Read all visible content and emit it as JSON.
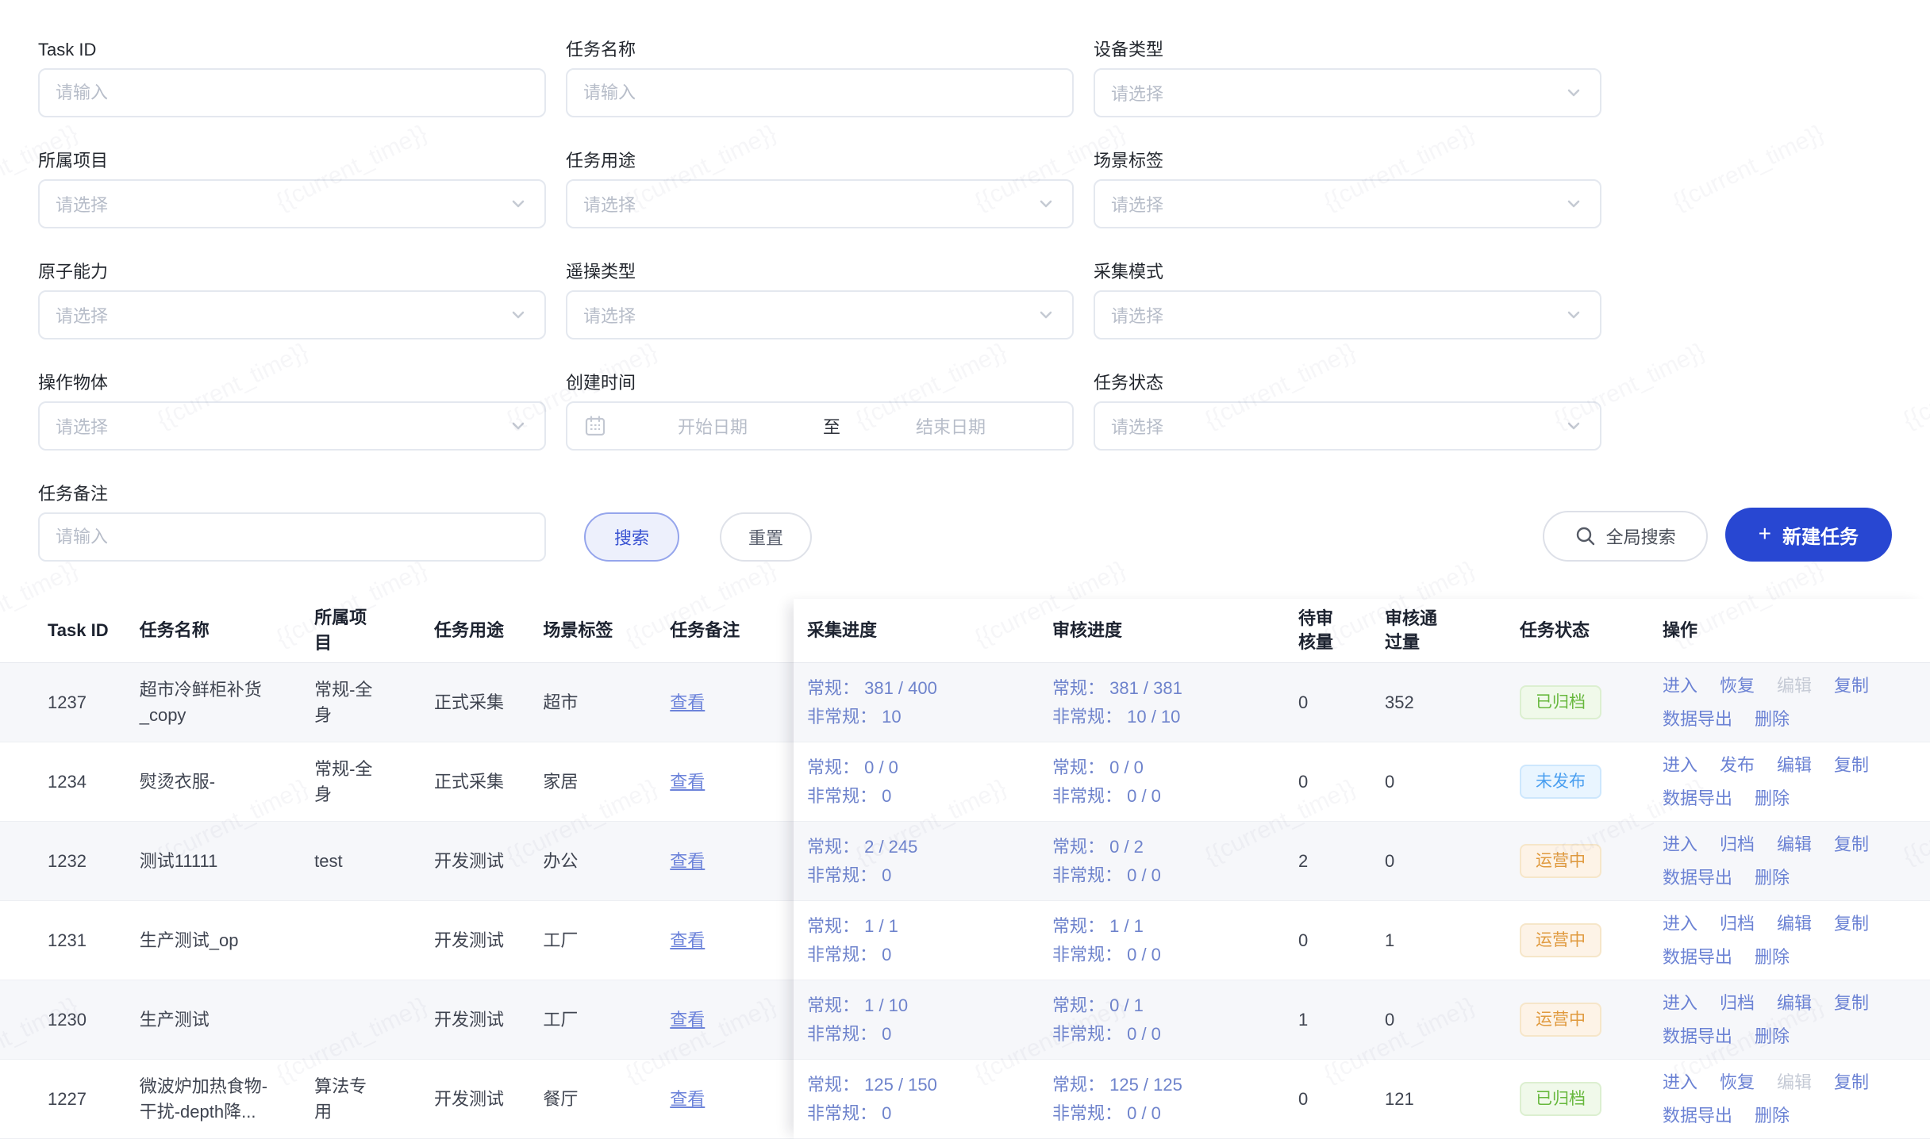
{
  "watermark": "{{current_time}}",
  "filters": {
    "fields": [
      {
        "label": "Task ID",
        "type": "input",
        "placeholder": "请输入"
      },
      {
        "label": "任务名称",
        "type": "input",
        "placeholder": "请输入"
      },
      {
        "label": "设备类型",
        "type": "select",
        "placeholder": "请选择"
      },
      {
        "label": "所属项目",
        "type": "select",
        "placeholder": "请选择"
      },
      {
        "label": "任务用途",
        "type": "select",
        "placeholder": "请选择"
      },
      {
        "label": "场景标签",
        "type": "select",
        "placeholder": "请选择"
      },
      {
        "label": "原子能力",
        "type": "select",
        "placeholder": "请选择"
      },
      {
        "label": "遥操类型",
        "type": "select",
        "placeholder": "请选择"
      },
      {
        "label": "采集模式",
        "type": "select",
        "placeholder": "请选择"
      },
      {
        "label": "操作物体",
        "type": "select",
        "placeholder": "请选择"
      },
      {
        "label": "创建时间",
        "type": "daterange",
        "start_placeholder": "开始日期",
        "separator": "至",
        "end_placeholder": "结束日期"
      },
      {
        "label": "任务状态",
        "type": "select",
        "placeholder": "请选择"
      },
      {
        "label": "任务备注",
        "type": "input",
        "placeholder": "请输入"
      }
    ],
    "search_label": "搜索",
    "reset_label": "重置"
  },
  "toolbar": {
    "global_search_label": "全局搜索",
    "new_task_label": "新建任务",
    "new_task_color": "#2847d2"
  },
  "table": {
    "columns": [
      "Task ID",
      "任务名称",
      "所属项目",
      "任务用途",
      "场景标签",
      "任务备注",
      "采集进度",
      "审核进度",
      "待审核量",
      "审核通过量",
      "任务状态",
      "操作"
    ],
    "view_label": "查看",
    "status_colors": {
      "green": "#67b83d",
      "blue": "#4a9ff0",
      "orange": "#e09a3e"
    },
    "rows": [
      {
        "task_id": "1237",
        "name": "超市冷鲜柜补货_copy",
        "project": "常规-全身",
        "purpose": "正式采集",
        "scene": "超市",
        "collect": [
          "常规： 381 / 400",
          "非常规： 10"
        ],
        "review": [
          "常规： 381 / 381",
          "非常规： 10 / 10"
        ],
        "pending": "0",
        "passed": "352",
        "status": {
          "label": "已归档",
          "type": "green"
        },
        "actions": [
          {
            "label": "进入"
          },
          {
            "label": "恢复"
          },
          {
            "label": "编辑",
            "disabled": true
          },
          {
            "label": "复制"
          },
          {
            "label": "数据导出"
          },
          {
            "label": "删除"
          }
        ]
      },
      {
        "task_id": "1234",
        "name": "熨烫衣服-",
        "project": "常规-全身",
        "purpose": "正式采集",
        "scene": "家居",
        "collect": [
          "常规： 0 / 0",
          "非常规： 0"
        ],
        "review": [
          "常规： 0 / 0",
          "非常规： 0 / 0"
        ],
        "pending": "0",
        "passed": "0",
        "status": {
          "label": "未发布",
          "type": "blue"
        },
        "actions": [
          {
            "label": "进入"
          },
          {
            "label": "发布"
          },
          {
            "label": "编辑"
          },
          {
            "label": "复制"
          },
          {
            "label": "数据导出"
          },
          {
            "label": "删除"
          }
        ]
      },
      {
        "task_id": "1232",
        "name": "测试11111",
        "project": "test",
        "purpose": "开发测试",
        "scene": "办公",
        "collect": [
          "常规： 2 / 245",
          "非常规： 0"
        ],
        "review": [
          "常规： 0 / 2",
          "非常规： 0 / 0"
        ],
        "pending": "2",
        "passed": "0",
        "status": {
          "label": "运营中",
          "type": "orange"
        },
        "actions": [
          {
            "label": "进入"
          },
          {
            "label": "归档"
          },
          {
            "label": "编辑"
          },
          {
            "label": "复制"
          },
          {
            "label": "数据导出"
          },
          {
            "label": "删除"
          }
        ]
      },
      {
        "task_id": "1231",
        "name": "生产测试_op",
        "project": "",
        "purpose": "开发测试",
        "scene": "工厂",
        "collect": [
          "常规： 1 / 1",
          "非常规： 0"
        ],
        "review": [
          "常规： 1 / 1",
          "非常规： 0 / 0"
        ],
        "pending": "0",
        "passed": "1",
        "status": {
          "label": "运营中",
          "type": "orange"
        },
        "actions": [
          {
            "label": "进入"
          },
          {
            "label": "归档"
          },
          {
            "label": "编辑"
          },
          {
            "label": "复制"
          },
          {
            "label": "数据导出"
          },
          {
            "label": "删除"
          }
        ]
      },
      {
        "task_id": "1230",
        "name": "生产测试",
        "project": "",
        "purpose": "开发测试",
        "scene": "工厂",
        "collect": [
          "常规： 1 / 10",
          "非常规： 0"
        ],
        "review": [
          "常规： 0 / 1",
          "非常规： 0 / 0"
        ],
        "pending": "1",
        "passed": "0",
        "status": {
          "label": "运营中",
          "type": "orange"
        },
        "actions": [
          {
            "label": "进入"
          },
          {
            "label": "归档"
          },
          {
            "label": "编辑"
          },
          {
            "label": "复制"
          },
          {
            "label": "数据导出"
          },
          {
            "label": "删除"
          }
        ]
      },
      {
        "task_id": "1227",
        "name": "微波炉加热食物-干扰-depth降...",
        "project": "算法专用",
        "purpose": "开发测试",
        "scene": "餐厅",
        "collect": [
          "常规： 125 / 150",
          "非常规： 0"
        ],
        "review": [
          "常规： 125 / 125",
          "非常规： 0 / 0"
        ],
        "pending": "0",
        "passed": "121",
        "status": {
          "label": "已归档",
          "type": "green"
        },
        "actions": [
          {
            "label": "进入"
          },
          {
            "label": "恢复"
          },
          {
            "label": "编辑",
            "disabled": true
          },
          {
            "label": "复制"
          },
          {
            "label": "数据导出"
          },
          {
            "label": "删除"
          }
        ]
      }
    ]
  }
}
